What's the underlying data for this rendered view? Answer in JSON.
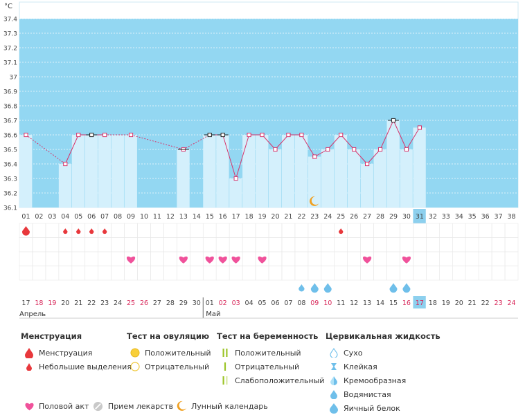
{
  "chart_data": {
    "type": "bar",
    "unit_label": "°C",
    "ylim": [
      36.1,
      37.4
    ],
    "y_ticks": [
      "36.1",
      "36.2",
      "36.3",
      "36.4",
      "36.5",
      "36.6",
      "36.7",
      "36.8",
      "36.9",
      "37",
      "37.1",
      "37.2",
      "37.3",
      "37.4"
    ],
    "cycle_days": [
      "01",
      "02",
      "03",
      "04",
      "05",
      "06",
      "07",
      "08",
      "09",
      "10",
      "11",
      "12",
      "13",
      "14",
      "15",
      "16",
      "17",
      "18",
      "19",
      "20",
      "21",
      "22",
      "23",
      "24",
      "25",
      "26",
      "27",
      "28",
      "29",
      "30",
      "31",
      "32",
      "33",
      "34",
      "35",
      "36",
      "37",
      "38"
    ],
    "current_cycle_day": "31",
    "calendar_dates": [
      "17",
      "18",
      "19",
      "20",
      "21",
      "22",
      "23",
      "24",
      "25",
      "26",
      "27",
      "28",
      "29",
      "30",
      "01",
      "02",
      "03",
      "04",
      "05",
      "06",
      "07",
      "08",
      "09",
      "10",
      "11",
      "12",
      "13",
      "14",
      "15",
      "16",
      "17",
      "18",
      "19",
      "20",
      "21",
      "22",
      "23",
      "24"
    ],
    "weekend_date_indices": [
      1,
      2,
      8,
      9,
      15,
      16,
      22,
      23,
      29,
      30,
      36,
      37
    ],
    "today_date_index": 30,
    "months": [
      {
        "label": "Апрель",
        "start_index": 0
      },
      {
        "label": "Май",
        "start_index": 14
      }
    ],
    "temperatures": [
      36.6,
      null,
      null,
      36.4,
      36.6,
      36.6,
      36.6,
      null,
      36.6,
      null,
      null,
      null,
      36.5,
      null,
      36.6,
      36.6,
      36.3,
      36.6,
      36.6,
      36.5,
      36.6,
      36.6,
      36.45,
      36.5,
      36.6,
      36.5,
      36.4,
      36.5,
      36.7,
      36.5,
      36.65,
      null,
      null,
      null,
      null,
      null,
      null,
      null
    ],
    "bar_values": [
      36.6,
      null,
      null,
      36.4,
      36.6,
      36.6,
      36.6,
      36.6,
      36.6,
      null,
      null,
      null,
      36.5,
      null,
      36.6,
      36.6,
      36.3,
      36.6,
      36.6,
      36.5,
      36.6,
      36.6,
      36.45,
      36.5,
      36.6,
      36.5,
      36.4,
      36.5,
      36.7,
      36.5,
      36.65,
      null,
      null,
      null,
      null,
      null,
      null,
      null
    ],
    "highlighted_points": [
      5,
      14,
      15,
      28
    ],
    "extra_white_marker_index": 12,
    "moon_day_index": 22,
    "menstruation_heavy_days": [
      0
    ],
    "menstruation_light_days": [
      3,
      4,
      5,
      6,
      24
    ],
    "intercourse_days": [
      8,
      12,
      14,
      15,
      16,
      18,
      26,
      29
    ],
    "cervical_fluid_water_days": [
      21
    ],
    "cervical_fluid_eggwhite_days": [
      22,
      23,
      28,
      29
    ]
  },
  "colors": {
    "sky": "#93d7f2",
    "bar": "#d4f0fc",
    "line": "#d8336a",
    "grid": "#e8e8e8",
    "weekend": "#d8285a",
    "moon": "#f0a020",
    "heart": "#f0529b",
    "blood": "#e8383c",
    "drop": "#6fbfea",
    "today_cell": "#8dd0ee"
  },
  "legend": {
    "menstruation": {
      "header": "Менструация",
      "items": [
        {
          "label": "Менструация",
          "icon": "blood-drop-large-icon"
        },
        {
          "label": "Небольшие выделения",
          "icon": "blood-drop-small-icon"
        }
      ]
    },
    "ovulation_test": {
      "header": "Тест на овуляцию",
      "items": [
        {
          "label": "Положительный",
          "icon": "yellow-filled-circle-icon"
        },
        {
          "label": "Отрицательный",
          "icon": "yellow-outline-circle-icon"
        }
      ]
    },
    "pregnancy_test": {
      "header": "Тест на беременность",
      "items": [
        {
          "label": "Положительный",
          "icon": "double-green-bar-icon"
        },
        {
          "label": "Отрицательный",
          "icon": "single-green-bar-icon"
        },
        {
          "label": "Слабоположительный",
          "icon": "faint-double-bar-icon"
        }
      ]
    },
    "cervical_fluid": {
      "header": "Цервикальная жидкость",
      "items": [
        {
          "label": "Сухо",
          "icon": "outline-drop-icon"
        },
        {
          "label": "Клейкая",
          "icon": "hourglass-icon"
        },
        {
          "label": "Кремообразная",
          "icon": "half-drop-icon"
        },
        {
          "label": "Водянистая",
          "icon": "water-drop-icon"
        },
        {
          "label": "Яичный белок",
          "icon": "big-drop-icon"
        }
      ]
    },
    "bottom": [
      {
        "label": "Половой акт",
        "icon": "heart-icon"
      },
      {
        "label": "Прием лекарств",
        "icon": "pill-icon"
      },
      {
        "label": "Лунный календарь",
        "icon": "moon-icon"
      }
    ]
  }
}
